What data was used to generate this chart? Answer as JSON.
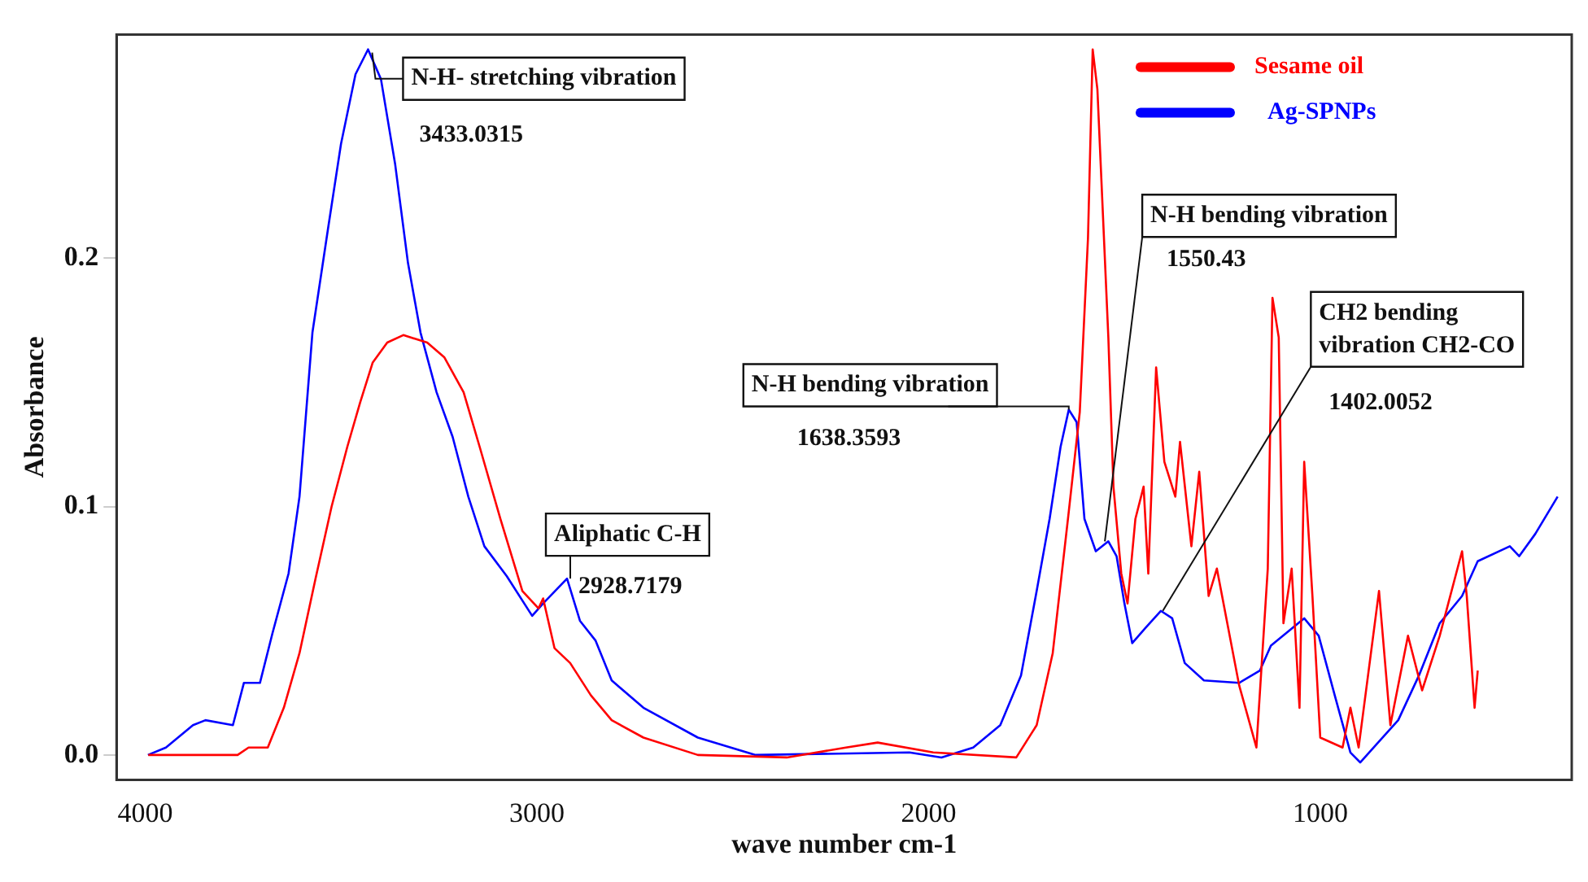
{
  "chart_data": {
    "type": "line",
    "xlabel": "wave number cm-1",
    "ylabel": "Absorbance",
    "xlim": [
      4073,
      358
    ],
    "xticks": [
      4000,
      3000,
      2000,
      1000
    ],
    "ylim": [
      -0.01,
      0.29
    ],
    "yticks": [
      {
        "value": 0,
        "label": "0.0"
      },
      {
        "value": 0.1,
        "label": "0.1"
      },
      {
        "value": 0.2,
        "label": "0.2"
      }
    ],
    "grid": false,
    "legend": "top right",
    "marker": "none",
    "line_style": "solid",
    "series": [
      {
        "name": "Sesame oil",
        "color": "#ff0000",
        "x": [
          3992,
          3764,
          3736,
          3687,
          3646,
          3606,
          3565,
          3524,
          3484,
          3451,
          3419,
          3382,
          3341,
          3280,
          3236,
          3187,
          3146,
          3093,
          3037,
          2996,
          2984,
          2955,
          2915,
          2862,
          2809,
          2728,
          2589,
          2362,
          2211,
          2130,
          1988,
          1776,
          1724,
          1683,
          1642,
          1614,
          1593,
          1581,
          1569,
          1541,
          1528,
          1508,
          1492,
          1472,
          1451,
          1439,
          1419,
          1398,
          1370,
          1358,
          1329,
          1309,
          1285,
          1264,
          1207,
          1163,
          1134,
          1122,
          1106,
          1094,
          1073,
          1053,
          1041,
          1020,
          1000,
          943,
          923,
          902,
          850,
          821,
          776,
          740,
          695,
          638,
          626,
          606,
          598
        ],
        "values": [
          0,
          0,
          0.003,
          0.003,
          0.019,
          0.041,
          0.071,
          0.1,
          0.124,
          0.142,
          0.158,
          0.166,
          0.169,
          0.166,
          0.16,
          0.146,
          0.124,
          0.095,
          0.066,
          0.059,
          0.063,
          0.043,
          0.037,
          0.024,
          0.014,
          0.007,
          0,
          -0.001,
          0.003,
          0.005,
          0.001,
          -0.001,
          0.012,
          0.041,
          0.098,
          0.138,
          0.208,
          0.284,
          0.268,
          0.168,
          0.108,
          0.073,
          0.061,
          0.095,
          0.108,
          0.073,
          0.156,
          0.118,
          0.104,
          0.126,
          0.084,
          0.114,
          0.064,
          0.075,
          0.028,
          0.003,
          0.075,
          0.184,
          0.168,
          0.053,
          0.075,
          0.019,
          0.118,
          0.064,
          0.007,
          0.003,
          0.019,
          0.003,
          0.066,
          0.012,
          0.048,
          0.026,
          0.048,
          0.082,
          0.064,
          0.019,
          0.034
        ]
      },
      {
        "name": "Ag-SPNPs",
        "color": "#0000ff",
        "x": [
          3993,
          3947,
          3878,
          3846,
          3776,
          3748,
          3707,
          3675,
          3634,
          3606,
          3573,
          3533,
          3500,
          3463,
          3431,
          3398,
          3362,
          3329,
          3297,
          3256,
          3215,
          3175,
          3134,
          3077,
          3012,
          2984,
          2923,
          2890,
          2850,
          2809,
          2728,
          2589,
          2443,
          2049,
          1967,
          1886,
          1817,
          1764,
          1724,
          1691,
          1663,
          1642,
          1622,
          1602,
          1573,
          1541,
          1520,
          1500,
          1480,
          1447,
          1407,
          1378,
          1346,
          1297,
          1207,
          1154,
          1126,
          1041,
          1004,
          963,
          923,
          898,
          858,
          801,
          748,
          695,
          638,
          598,
          516,
          492,
          451,
          394
        ],
        "values": [
          0,
          0.003,
          0.012,
          0.014,
          0.012,
          0.029,
          0.029,
          0.049,
          0.073,
          0.104,
          0.17,
          0.212,
          0.246,
          0.274,
          0.284,
          0.272,
          0.238,
          0.198,
          0.17,
          0.146,
          0.128,
          0.104,
          0.084,
          0.072,
          0.056,
          0.061,
          0.071,
          0.054,
          0.046,
          0.03,
          0.019,
          0.007,
          0,
          0.001,
          -0.001,
          0.003,
          0.012,
          0.032,
          0.066,
          0.095,
          0.124,
          0.139,
          0.134,
          0.095,
          0.082,
          0.086,
          0.08,
          0.061,
          0.045,
          0.051,
          0.058,
          0.055,
          0.037,
          0.03,
          0.029,
          0.034,
          0.044,
          0.055,
          0.048,
          0.024,
          0.001,
          -0.003,
          0.004,
          0.014,
          0.032,
          0.053,
          0.064,
          0.078,
          0.084,
          0.08,
          0.089,
          0.104
        ]
      }
    ],
    "annotations": [
      {
        "text": "N-H- stretching vibration",
        "x": 3433,
        "y": 0.284
      },
      "3433.0315",
      {
        "text": "Aliphatic C-H",
        "x": 2923,
        "y": 0.071
      },
      "2928.7179",
      {
        "text": "N-H bending vibration",
        "x": 1642,
        "y": 0.139
      },
      "1638.3593",
      {
        "text": "N-H bending vibration",
        "x": 1550,
        "y": 0.086
      },
      "1550.43",
      {
        "text": "CH2 bending vibration CH2-CO",
        "x": 1402,
        "y": 0.058
      },
      "1402.0052"
    ]
  }
}
